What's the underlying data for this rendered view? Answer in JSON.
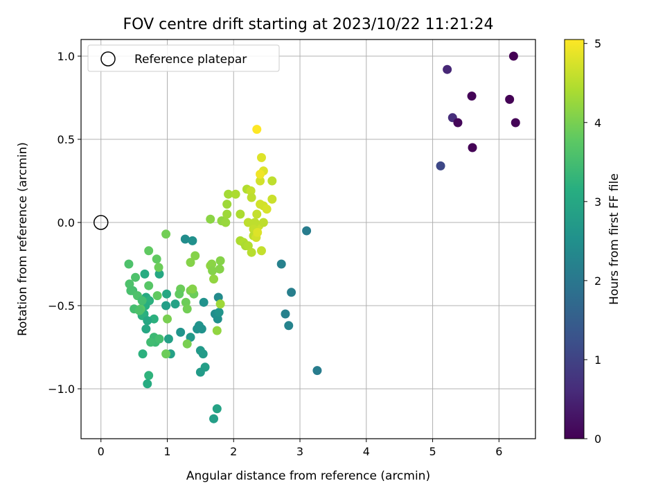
{
  "chart_data": {
    "type": "scatter",
    "title": "FOV centre drift starting at 2023/10/22 11:21:24",
    "xlabel": "Angular distance from reference (arcmin)",
    "ylabel": "Rotation from reference (arcmin)",
    "xlim": [
      -0.3,
      6.55
    ],
    "ylim": [
      -1.3,
      1.1
    ],
    "x_ticks": [
      0,
      1,
      2,
      3,
      4,
      5,
      6
    ],
    "x_tick_labels": [
      "0",
      "1",
      "2",
      "3",
      "4",
      "5",
      "6"
    ],
    "y_ticks": [
      -1.0,
      -0.5,
      0.0,
      0.5,
      1.0
    ],
    "y_tick_labels": [
      "−1.0",
      "−0.5",
      "0.0",
      "0.5",
      "1.0"
    ],
    "grid": true,
    "legend": {
      "position": "top-left",
      "entries": [
        "Reference platepar"
      ]
    },
    "reference_point": {
      "x": 0.0,
      "y": 0.0,
      "label": "Reference platepar"
    },
    "colorbar": {
      "label": "Hours from first FF file",
      "colormap": "viridis",
      "range": [
        0,
        5.05
      ],
      "ticks": [
        0,
        1,
        2,
        3,
        4,
        5
      ],
      "tick_labels": [
        "0",
        "1",
        "2",
        "3",
        "4",
        "5"
      ]
    },
    "points": [
      [
        6.22,
        1.0,
        0.0
      ],
      [
        5.22,
        0.92,
        0.55
      ],
      [
        5.59,
        0.76,
        0.05
      ],
      [
        6.16,
        0.74,
        0.02
      ],
      [
        5.3,
        0.63,
        0.65
      ],
      [
        5.38,
        0.6,
        0.08
      ],
      [
        6.25,
        0.6,
        0.05
      ],
      [
        5.6,
        0.45,
        0.03
      ],
      [
        5.12,
        0.34,
        1.1
      ],
      [
        3.1,
        -0.05,
        2.1
      ],
      [
        2.72,
        -0.25,
        2.2
      ],
      [
        2.87,
        -0.42,
        2.15
      ],
      [
        2.78,
        -0.55,
        2.2
      ],
      [
        2.83,
        -0.62,
        2.25
      ],
      [
        3.26,
        -0.89,
        2.1
      ],
      [
        1.77,
        -0.45,
        2.4
      ],
      [
        1.72,
        -0.55,
        2.45
      ],
      [
        1.76,
        -0.58,
        2.5
      ],
      [
        1.78,
        -0.54,
        2.6
      ],
      [
        1.48,
        -0.62,
        2.6
      ],
      [
        1.52,
        -0.64,
        2.55
      ],
      [
        1.55,
        -0.48,
        2.55
      ],
      [
        1.45,
        -0.64,
        2.55
      ],
      [
        1.35,
        -0.69,
        2.7
      ],
      [
        1.2,
        -0.66,
        2.6
      ],
      [
        1.27,
        -0.1,
        2.45
      ],
      [
        1.38,
        -0.11,
        2.5
      ],
      [
        1.12,
        -0.49,
        2.9
      ],
      [
        0.98,
        -0.5,
        2.8
      ],
      [
        1.02,
        -0.7,
        2.85
      ],
      [
        1.05,
        -0.79,
        2.85
      ],
      [
        1.5,
        -0.77,
        2.7
      ],
      [
        1.54,
        -0.79,
        2.75
      ],
      [
        1.57,
        -0.87,
        2.8
      ],
      [
        1.5,
        -0.9,
        2.75
      ],
      [
        1.75,
        -1.12,
        2.9
      ],
      [
        1.7,
        -1.18,
        2.8
      ],
      [
        0.99,
        -0.43,
        3.0
      ],
      [
        0.88,
        -0.31,
        3.0
      ],
      [
        0.68,
        -0.45,
        3.05
      ],
      [
        0.66,
        -0.31,
        3.1
      ],
      [
        0.73,
        -0.47,
        3.2
      ],
      [
        0.8,
        -0.58,
        3.2
      ],
      [
        0.65,
        -0.55,
        3.15
      ],
      [
        0.62,
        -0.56,
        3.2
      ],
      [
        0.67,
        -0.5,
        3.15
      ],
      [
        0.7,
        -0.59,
        3.0
      ],
      [
        0.68,
        -0.64,
        3.0
      ],
      [
        0.63,
        -0.79,
        3.2
      ],
      [
        0.8,
        -0.69,
        3.4
      ],
      [
        0.82,
        -0.72,
        3.4
      ],
      [
        0.88,
        -0.7,
        3.5
      ],
      [
        0.75,
        -0.72,
        3.45
      ],
      [
        0.72,
        -0.92,
        3.25
      ],
      [
        0.7,
        -0.97,
        3.1
      ],
      [
        0.48,
        -0.41,
        3.5
      ],
      [
        0.52,
        -0.33,
        3.6
      ],
      [
        0.43,
        -0.37,
        3.6
      ],
      [
        0.45,
        -0.41,
        3.55
      ],
      [
        0.42,
        -0.25,
        3.6
      ],
      [
        0.5,
        -0.52,
        3.5
      ],
      [
        0.55,
        -0.44,
        3.6
      ],
      [
        0.6,
        -0.52,
        3.7
      ],
      [
        0.58,
        -0.53,
        3.6
      ],
      [
        0.62,
        -0.47,
        3.5
      ],
      [
        0.72,
        -0.38,
        3.7
      ],
      [
        0.72,
        -0.17,
        3.8
      ],
      [
        0.84,
        -0.22,
        3.8
      ],
      [
        0.87,
        -0.27,
        3.9
      ],
      [
        0.85,
        -0.44,
        3.8
      ],
      [
        0.98,
        -0.79,
        3.9
      ],
      [
        1.0,
        -0.58,
        4.0
      ],
      [
        0.98,
        -0.07,
        3.95
      ],
      [
        1.2,
        -0.4,
        3.9
      ],
      [
        1.18,
        -0.43,
        3.8
      ],
      [
        1.28,
        -0.48,
        3.9
      ],
      [
        1.3,
        -0.52,
        3.95
      ],
      [
        1.35,
        -0.41,
        4.0
      ],
      [
        1.4,
        -0.43,
        3.9
      ],
      [
        1.38,
        -0.4,
        4.1
      ],
      [
        1.3,
        -0.73,
        4.0
      ],
      [
        1.35,
        -0.24,
        4.1
      ],
      [
        1.42,
        -0.2,
        4.1
      ],
      [
        1.65,
        -0.26,
        4.2
      ],
      [
        1.67,
        -0.25,
        4.15
      ],
      [
        1.68,
        -0.29,
        4.1
      ],
      [
        1.7,
        -0.34,
        4.2
      ],
      [
        1.8,
        -0.23,
        4.1
      ],
      [
        1.79,
        -0.28,
        4.1
      ],
      [
        1.8,
        -0.49,
        4.3
      ],
      [
        1.75,
        -0.65,
        4.2
      ],
      [
        1.65,
        0.02,
        4.15
      ],
      [
        1.82,
        0.01,
        4.2
      ],
      [
        1.88,
        0.0,
        4.25
      ],
      [
        1.9,
        0.05,
        4.3
      ],
      [
        1.9,
        0.11,
        4.3
      ],
      [
        1.92,
        0.17,
        4.35
      ],
      [
        2.03,
        0.17,
        4.4
      ],
      [
        2.1,
        0.05,
        4.4
      ],
      [
        2.1,
        -0.11,
        4.4
      ],
      [
        2.15,
        -0.12,
        4.45
      ],
      [
        2.18,
        -0.14,
        4.4
      ],
      [
        2.22,
        -0.14,
        4.45
      ],
      [
        2.27,
        -0.18,
        4.5
      ],
      [
        2.2,
        0.2,
        4.45
      ],
      [
        2.26,
        0.19,
        4.6
      ],
      [
        2.27,
        0.15,
        4.55
      ],
      [
        2.35,
        0.05,
        4.6
      ],
      [
        2.38,
        -0.02,
        4.65
      ],
      [
        2.32,
        0.0,
        4.55
      ],
      [
        2.22,
        0.0,
        4.55
      ],
      [
        2.3,
        -0.04,
        4.6
      ],
      [
        2.3,
        -0.08,
        4.55
      ],
      [
        2.34,
        -0.09,
        4.7
      ],
      [
        2.36,
        -0.06,
        4.8
      ],
      [
        2.42,
        -0.17,
        4.6
      ],
      [
        2.4,
        0.11,
        4.7
      ],
      [
        2.45,
        0.1,
        4.7
      ],
      [
        2.5,
        0.08,
        4.75
      ],
      [
        2.45,
        0.0,
        4.55
      ],
      [
        2.4,
        0.25,
        4.7
      ],
      [
        2.45,
        0.31,
        4.8
      ],
      [
        2.4,
        0.29,
        4.95
      ],
      [
        2.58,
        0.25,
        4.55
      ],
      [
        2.58,
        0.14,
        4.65
      ],
      [
        2.42,
        0.39,
        4.8
      ],
      [
        2.35,
        0.56,
        5.05
      ]
    ]
  }
}
